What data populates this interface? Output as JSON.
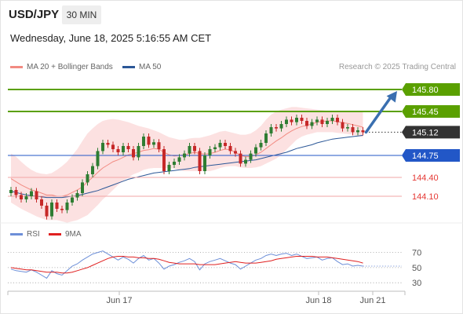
{
  "header": {
    "symbol": "USD/JPY",
    "timeframe": "30 MIN",
    "datetime": "Wednesday, June 18, 2025 5:16:55 AM CET"
  },
  "legend": {
    "ma20_bb": "MA 20 + Bollinger Bands",
    "ma50": "MA 50",
    "credit": "Research © 2025 Trading Central",
    "rsi": "RSI",
    "ma9": "9MA"
  },
  "colors": {
    "bull": "#2e7d32",
    "bear": "#c62828",
    "bollinger_fill": "#fcdede",
    "ma20": "#f28b82",
    "ma50": "#2b5797",
    "resistance": "#5aa000",
    "support": "#2257c7",
    "level_red": "#e53935",
    "arrow": "#3a6fb0",
    "last": "#333333"
  },
  "chart_data": [
    {
      "type": "candlestick",
      "ylim": [
        143.7,
        146.0
      ],
      "x_ticks": [
        "Jun 17",
        "Jun 18",
        "Jun 21"
      ],
      "levels": [
        {
          "value": 145.8,
          "label": "145.80",
          "kind": "resistance"
        },
        {
          "value": 145.45,
          "label": "145.45",
          "kind": "resistance"
        },
        {
          "value": 145.12,
          "label": "145.12",
          "kind": "last"
        },
        {
          "value": 144.75,
          "label": "144.75",
          "kind": "pivot"
        },
        {
          "value": 144.4,
          "label": "144.40",
          "kind": "support"
        },
        {
          "value": 144.1,
          "label": "144.10",
          "kind": "support"
        }
      ],
      "closes": [
        144.2,
        144.12,
        144.05,
        144.1,
        144.18,
        144.05,
        143.95,
        143.78,
        144.0,
        143.9,
        143.88,
        144.0,
        144.08,
        144.15,
        144.32,
        144.45,
        144.58,
        144.82,
        144.95,
        144.92,
        144.85,
        144.8,
        144.9,
        144.85,
        144.72,
        144.9,
        145.05,
        144.92,
        144.96,
        144.85,
        144.5,
        144.6,
        144.65,
        144.72,
        144.78,
        144.9,
        144.82,
        144.5,
        144.75,
        144.85,
        144.88,
        144.95,
        144.9,
        144.82,
        144.78,
        144.62,
        144.68,
        144.78,
        144.88,
        144.95,
        145.1,
        145.2,
        145.18,
        145.25,
        145.32,
        145.28,
        145.35,
        145.3,
        145.22,
        145.28,
        145.32,
        145.25,
        145.3,
        145.35,
        145.28,
        145.18,
        145.2,
        145.12,
        145.15,
        145.12
      ],
      "ma20": [
        144.38,
        144.33,
        144.28,
        144.24,
        144.2,
        144.18,
        144.15,
        144.12,
        144.12,
        144.1,
        144.1,
        144.12,
        144.16,
        144.2,
        144.25,
        144.33,
        144.4,
        144.48,
        144.55,
        144.6,
        144.65,
        144.68,
        144.72,
        144.76,
        144.78,
        144.8,
        144.83,
        144.84,
        144.86,
        144.85,
        144.8,
        144.76,
        144.74,
        144.75,
        144.76,
        144.78,
        144.8,
        144.78,
        144.77,
        144.78,
        144.8,
        144.83,
        144.85,
        144.84,
        144.8,
        144.75,
        144.73,
        144.73,
        144.76,
        144.8,
        144.86,
        144.92,
        144.98,
        145.03,
        145.09,
        145.14,
        145.18,
        145.21,
        145.23,
        145.25,
        145.28,
        145.29,
        145.3,
        145.3,
        145.29,
        145.27,
        145.26,
        145.24,
        145.22,
        145.2
      ],
      "bb_upper": [
        144.78,
        144.73,
        144.65,
        144.58,
        144.52,
        144.48,
        144.46,
        144.45,
        144.47,
        144.52,
        144.58,
        144.65,
        144.75,
        144.85,
        144.98,
        145.1,
        145.18,
        145.25,
        145.3,
        145.32,
        145.33,
        145.32,
        145.3,
        145.28,
        145.25,
        145.22,
        145.2,
        145.18,
        145.15,
        145.12,
        145.08,
        145.04,
        145.02,
        145.0,
        145.0,
        145.02,
        145.03,
        145.03,
        145.05,
        145.07,
        145.1,
        145.13,
        145.14,
        145.12,
        145.1,
        145.08,
        145.08,
        145.1,
        145.15,
        145.22,
        145.32,
        145.4,
        145.45,
        145.48,
        145.5,
        145.52,
        145.52,
        145.51,
        145.5,
        145.49,
        145.48,
        145.47,
        145.46,
        145.45,
        145.44,
        145.44,
        145.44,
        145.44,
        145.44,
        145.44
      ],
      "bb_lower": [
        144.0,
        143.95,
        143.9,
        143.86,
        143.82,
        143.78,
        143.75,
        143.72,
        143.72,
        143.72,
        143.7,
        143.68,
        143.7,
        143.72,
        143.76,
        143.8,
        143.88,
        143.96,
        144.05,
        144.12,
        144.2,
        144.28,
        144.35,
        144.4,
        144.45,
        144.48,
        144.52,
        144.54,
        144.55,
        144.55,
        144.55,
        144.55,
        144.54,
        144.52,
        144.5,
        144.5,
        144.5,
        144.5,
        144.5,
        144.5,
        144.52,
        144.55,
        144.57,
        144.58,
        144.58,
        144.56,
        144.55,
        144.55,
        144.56,
        144.58,
        144.62,
        144.66,
        144.7,
        144.76,
        144.84,
        144.92,
        145.0,
        145.05,
        145.08,
        145.1,
        145.12,
        145.12,
        145.12,
        145.12,
        145.11,
        145.1,
        145.09,
        145.08,
        145.06,
        145.04
      ],
      "ma50": [
        144.18,
        144.16,
        144.14,
        144.12,
        144.11,
        144.1,
        144.09,
        144.08,
        144.08,
        144.08,
        144.08,
        144.09,
        144.1,
        144.11,
        144.13,
        144.15,
        144.17,
        144.19,
        144.22,
        144.25,
        144.28,
        144.31,
        144.34,
        144.37,
        144.39,
        144.41,
        144.43,
        144.45,
        144.47,
        144.48,
        144.49,
        144.5,
        144.51,
        144.52,
        144.53,
        144.54,
        144.56,
        144.57,
        144.58,
        144.59,
        144.6,
        144.61,
        144.62,
        144.63,
        144.64,
        144.65,
        144.66,
        144.67,
        144.68,
        144.7,
        144.72,
        144.74,
        144.76,
        144.78,
        144.8,
        144.83,
        144.86,
        144.88,
        144.9,
        144.92,
        144.95,
        144.97,
        144.99,
        145.01,
        145.02,
        145.03,
        145.04,
        145.05,
        145.06,
        145.07
      ],
      "projection": [
        145.12,
        145.8
      ]
    },
    {
      "type": "line",
      "ylim": [
        25,
        80
      ],
      "y_ticks": [
        70,
        50,
        30
      ],
      "series": [
        {
          "name": "RSI",
          "values": [
            48,
            46,
            45,
            44,
            47,
            44,
            40,
            36,
            46,
            42,
            40,
            46,
            52,
            55,
            60,
            64,
            68,
            70,
            72,
            68,
            64,
            60,
            64,
            61,
            56,
            62,
            66,
            60,
            62,
            56,
            48,
            52,
            54,
            57,
            59,
            62,
            58,
            47,
            55,
            58,
            60,
            62,
            59,
            56,
            54,
            48,
            52,
            56,
            60,
            62,
            66,
            68,
            66,
            68,
            69,
            66,
            68,
            65,
            62,
            63,
            64,
            60,
            62,
            63,
            58,
            54,
            55,
            52,
            53,
            52
          ]
        },
        {
          "name": "9MA",
          "values": [
            50,
            49,
            48,
            47,
            47,
            46,
            45,
            44,
            44,
            44,
            43,
            43,
            44,
            46,
            48,
            50,
            53,
            56,
            59,
            62,
            64,
            65,
            65,
            64,
            64,
            63,
            63,
            62,
            62,
            61,
            59,
            57,
            56,
            55,
            55,
            55,
            55,
            54,
            54,
            54,
            54,
            55,
            56,
            57,
            58,
            57,
            56,
            56,
            56,
            57,
            58,
            59,
            61,
            62,
            63,
            64,
            65,
            65,
            65,
            65,
            64,
            64,
            64,
            63,
            62,
            61,
            60,
            59,
            58,
            56
          ]
        }
      ]
    }
  ]
}
